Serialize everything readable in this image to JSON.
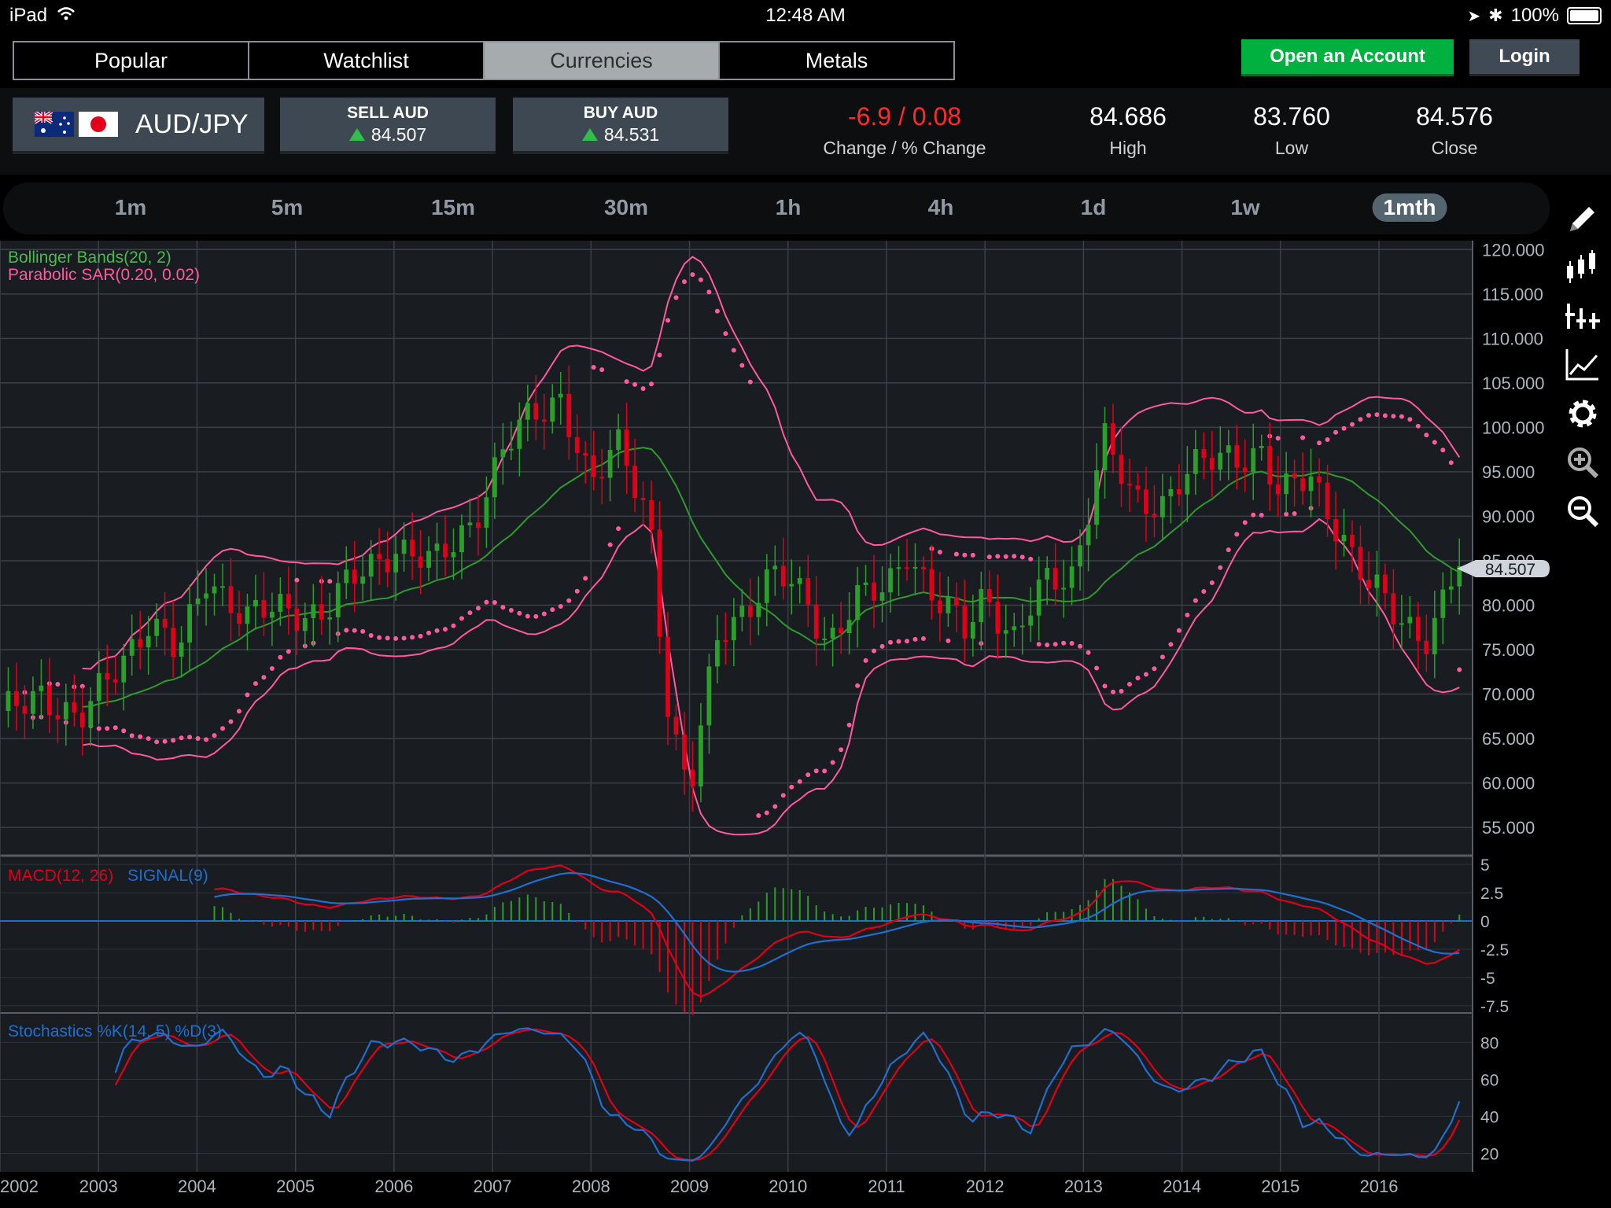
{
  "status": {
    "device": "iPad",
    "time": "12:48 AM",
    "battery": "100%"
  },
  "categories": [
    {
      "label": "Popular",
      "active": false
    },
    {
      "label": "Watchlist",
      "active": false
    },
    {
      "label": "Currencies",
      "active": true
    },
    {
      "label": "Metals",
      "active": false
    }
  ],
  "account": {
    "open_label": "Open an Account",
    "login_label": "Login"
  },
  "pair": {
    "label": "AUD/JPY",
    "flags": [
      "australia-flag",
      "japan-flag"
    ]
  },
  "sell": {
    "label": "SELL AUD",
    "value": "84.507"
  },
  "buy": {
    "label": "BUY AUD",
    "value": "84.531"
  },
  "stats": {
    "change_value": "-6.9 / 0.08",
    "change_label": "Change / % Change",
    "high_value": "84.686",
    "high_label": "High",
    "low_value": "83.760",
    "low_label": "Low",
    "close_value": "84.576",
    "close_label": "Close"
  },
  "timeframes": [
    {
      "label": "1m",
      "active": false
    },
    {
      "label": "5m",
      "active": false
    },
    {
      "label": "15m",
      "active": false
    },
    {
      "label": "30m",
      "active": false
    },
    {
      "label": "1h",
      "active": false
    },
    {
      "label": "4h",
      "active": false
    },
    {
      "label": "1d",
      "active": false
    },
    {
      "label": "1w",
      "active": false
    },
    {
      "label": "1mth",
      "active": true
    }
  ],
  "tools": [
    "pencil-icon",
    "candlestick-icon",
    "indicator-add-icon",
    "line-chart-icon",
    "gear-icon",
    "zoom-in-icon",
    "zoom-out-icon"
  ],
  "colors": {
    "accent_green": "#00b140",
    "bollinger": "#2f9a2f",
    "sar": "#ff5aa0",
    "up": "#2aa02a",
    "down": "#e0001a",
    "macd": "#e0001a",
    "signal": "#1f6fd0"
  },
  "chart_data": {
    "type": "candlestick",
    "indicators": [
      "Bollinger Bands(20, 2)",
      "Parabolic SAR(0.20, 0.02)"
    ],
    "current_price": "84.507",
    "price_ticks": [
      "120.000",
      "115.000",
      "110.000",
      "105.000",
      "100.000",
      "95.000",
      "90.000",
      "85.000",
      "80.000",
      "75.000",
      "70.000",
      "65.000",
      "60.000",
      "55.000"
    ],
    "x_labels": [
      "2002",
      "2003",
      "2004",
      "2005",
      "2006",
      "2007",
      "2008",
      "2009",
      "2010",
      "2011",
      "2012",
      "2013",
      "2014",
      "2015",
      "2016"
    ],
    "ylim": [
      52,
      121
    ],
    "xlim": [
      2002,
      2016.95
    ],
    "price_path": [
      [
        2002.0,
        67
      ],
      [
        2002.4,
        71
      ],
      [
        2002.8,
        66
      ],
      [
        2003.2,
        74
      ],
      [
        2003.5,
        78
      ],
      [
        2003.8,
        74
      ],
      [
        2004.1,
        84
      ],
      [
        2004.5,
        78
      ],
      [
        2004.9,
        80
      ],
      [
        2005.3,
        79
      ],
      [
        2005.7,
        84
      ],
      [
        2006.0,
        87
      ],
      [
        2006.4,
        84
      ],
      [
        2006.8,
        90
      ],
      [
        2007.1,
        97
      ],
      [
        2007.4,
        101
      ],
      [
        2007.7,
        104
      ],
      [
        2008.0,
        93
      ],
      [
        2008.3,
        98
      ],
      [
        2008.6,
        90
      ],
      [
        2008.8,
        66
      ],
      [
        2009.0,
        58
      ],
      [
        2009.3,
        78
      ],
      [
        2009.6,
        80
      ],
      [
        2009.9,
        83
      ],
      [
        2010.2,
        81
      ],
      [
        2010.4,
        76
      ],
      [
        2010.7,
        80
      ],
      [
        2011.0,
        82
      ],
      [
        2011.2,
        87
      ],
      [
        2011.5,
        80
      ],
      [
        2011.8,
        77
      ],
      [
        2012.0,
        82
      ],
      [
        2012.3,
        76
      ],
      [
        2012.6,
        82
      ],
      [
        2012.9,
        84
      ],
      [
        2013.2,
        99
      ],
      [
        2013.5,
        91
      ],
      [
        2013.8,
        92
      ],
      [
        2014.0,
        95
      ],
      [
        2014.4,
        96
      ],
      [
        2014.8,
        98
      ],
      [
        2015.0,
        92
      ],
      [
        2015.3,
        94
      ],
      [
        2015.6,
        89
      ],
      [
        2015.9,
        82
      ],
      [
        2016.2,
        78
      ],
      [
        2016.5,
        77
      ],
      [
        2016.8,
        84.5
      ]
    ],
    "macd": {
      "label": "MACD(12, 26)",
      "signal_label": "SIGNAL(9)",
      "ticks": [
        "5",
        "2.5",
        "0",
        "-2.5",
        "-5",
        "-7.5"
      ],
      "ylim": [
        -8,
        5.5
      ]
    },
    "stochastics": {
      "label": "Stochastics %K(14, 5) %D(3)",
      "ticks": [
        "80",
        "60",
        "40",
        "20"
      ],
      "ylim": [
        10,
        95
      ]
    }
  }
}
